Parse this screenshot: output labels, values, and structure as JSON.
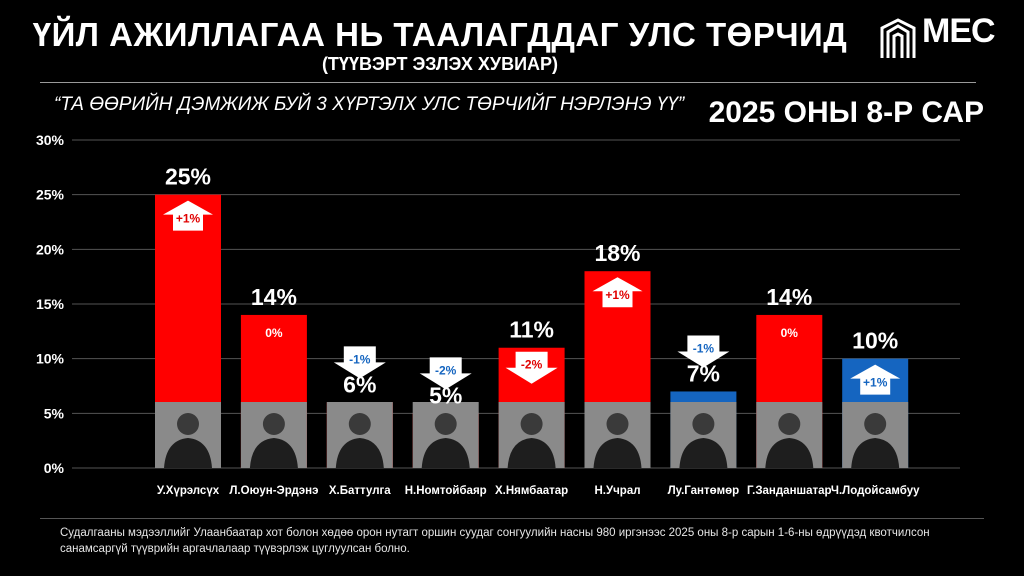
{
  "header": {
    "title": "ҮЙЛ АЖИЛЛАГАА НЬ ТААЛАГДДАГ УЛС ТӨРЧИД",
    "subtitle": "(ТҮҮВЭРТ ЭЗЛЭХ ХУВИАР)",
    "question": "“ТА ӨӨРИЙН ДЭМЖИЖ БУЙ 3 ХҮРТЭЛХ УЛС ТӨРЧИЙГ НЭРЛЭНЭ ҮҮ”",
    "period": "2025 ОНЫ 8-Р САР",
    "logo_text": "MEC"
  },
  "footer": {
    "note": "Судалгааны мэдээллийг Улаанбаатар хот болон хөдөө орон нутагт оршин суудаг сонгуулийн насны 980 иргэнээс 2025 оны 8-р сарын 1-6-ны өдрүүдэд квотчилсон санамсаргүй түүврийн аргачлалаар түүвэрлэж цуглуулсан болно."
  },
  "colors": {
    "bar_red": "#ff0000",
    "bar_blue": "#1565c0",
    "change_up_text": "#e00000",
    "change_down_text": "#1565c0",
    "change_zero_text": "#ffffff"
  },
  "chart_data": {
    "type": "bar",
    "categories": [
      "У.Хүрэлсүх",
      "Л.Оюун-Эрдэнэ",
      "Х.Баттулга",
      "Н.Номтойбаяр",
      "Х.Нямбаатар",
      "Н.Учрал",
      "Лу.Гантөмөр",
      "Г.Занданшатар",
      "Ч.Лодойсамбуу"
    ],
    "values": [
      25,
      14,
      6,
      5,
      11,
      18,
      7,
      14,
      10
    ],
    "value_labels": [
      "25%",
      "14%",
      "6%",
      "5%",
      "11%",
      "18%",
      "7%",
      "14%",
      "10%"
    ],
    "bar_colors": [
      "#ff0000",
      "#ff0000",
      "#ff0000",
      "#ff0000",
      "#ff0000",
      "#ff0000",
      "#1565c0",
      "#ff0000",
      "#1565c0"
    ],
    "changes": [
      "+1%",
      "0%",
      "-1%",
      "-2%",
      "-2%",
      "+1%",
      "-1%",
      "0%",
      "+1%"
    ],
    "change_direction": [
      "up",
      "none",
      "down",
      "down",
      "down",
      "up",
      "down",
      "none",
      "up"
    ],
    "yticks": [
      "0%",
      "5%",
      "10%",
      "15%",
      "20%",
      "25%",
      "30%"
    ],
    "ylim": [
      0,
      30
    ],
    "grid": true,
    "legend": "none"
  }
}
